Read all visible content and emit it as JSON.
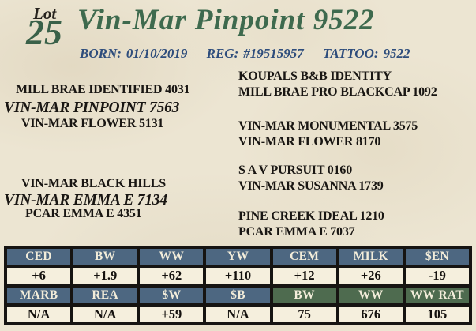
{
  "colors": {
    "background": "#ece5d2",
    "title_green": "#3e6a4e",
    "lot_number_green": "#3a6149",
    "info_blue": "#2e4d7c",
    "pedigree_text": "#191613",
    "table_header_blue": "#4d6781",
    "table_header_green": "#4e6b4f",
    "table_cell_cream": "#f5efdd",
    "table_border": "#161412"
  },
  "header": {
    "lot_label": "Lot",
    "lot_number": "25",
    "title": "Vin-Mar Pinpoint 9522",
    "born_label": "BORN:",
    "born_value": "01/10/2019",
    "reg_label": "REG:",
    "reg_value": "#19515957",
    "tattoo_label": "TATTOO:",
    "tattoo_value": "9522"
  },
  "pedigree": {
    "sire_line": {
      "grandsire": "MILL BRAE IDENTIFIED 4031",
      "name": "VIN-MAR PINPOINT 7563",
      "granddam": "VIN-MAR FLOWER 5131"
    },
    "dam_line": {
      "grandsire": "VIN-MAR BLACK HILLS",
      "name": "VIN-MAR EMMA E 7134",
      "granddam": "PCAR EMMA E 4351"
    },
    "third_generation": [
      "KOUPALS B&B IDENTITY",
      "MILL BRAE PRO BLACKCAP 1092",
      "VIN-MAR MONUMENTAL 3575",
      "VIN-MAR FLOWER 8170",
      "S A V PURSUIT 0160",
      "VIN-MAR SUSANNA 1739",
      "PINE CREEK IDEAL 1210",
      "PCAR EMMA E 7037"
    ]
  },
  "epd_table": {
    "row1_headers": [
      "CED",
      "BW",
      "WW",
      "YW",
      "CEM",
      "MILK",
      "$EN"
    ],
    "row1_values": [
      "+6",
      "+1.9",
      "+62",
      "+110",
      "+12",
      "+26",
      "-19"
    ],
    "row2_headers": [
      "MARB",
      "REA",
      "$W",
      "$B",
      "BW",
      "WW",
      "WW RAT"
    ],
    "row2_values": [
      "N/A",
      "N/A",
      "+59",
      "N/A",
      "75",
      "676",
      "105"
    ]
  }
}
